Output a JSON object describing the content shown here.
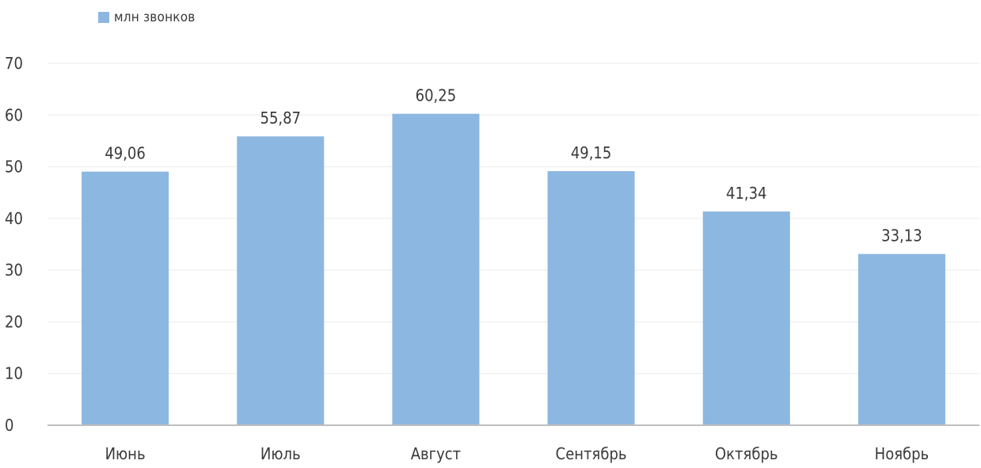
{
  "chart_data": {
    "type": "bar",
    "categories": [
      "Июнь",
      "Июль",
      "Август",
      "Сентябрь",
      "Октябрь",
      "Ноябрь"
    ],
    "series": [
      {
        "name": "млн звонков",
        "values": [
          49.06,
          55.87,
          60.25,
          49.15,
          41.34,
          33.13
        ]
      }
    ],
    "data_labels": [
      "49,06",
      "55,87",
      "60,25",
      "49,15",
      "41,34",
      "33,13"
    ],
    "y_ticks": [
      "0",
      "10",
      "20",
      "30",
      "40",
      "50",
      "60",
      "70"
    ],
    "ylim": [
      0,
      70
    ],
    "grid": true,
    "legend_position": "top-left",
    "colors": {
      "bar": "#8CB7E0",
      "grid": "#EBEBEB",
      "axis": "#BFBFBF",
      "text": "#3A3A3A"
    }
  }
}
